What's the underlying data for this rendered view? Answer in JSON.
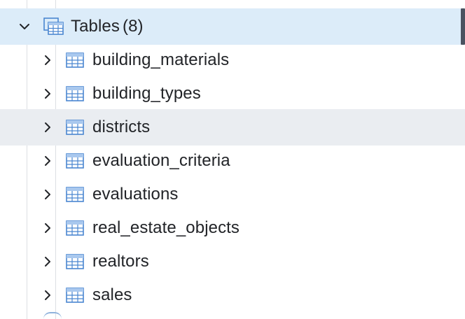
{
  "tree": {
    "parent": {
      "label": "Tables",
      "count": "(8)",
      "expanded": true,
      "icon": "tables-group-icon",
      "accent": "#dcecf9"
    },
    "children": [
      {
        "label": "building_materials",
        "icon": "table-icon"
      },
      {
        "label": "building_types",
        "icon": "table-icon"
      },
      {
        "label": "districts",
        "icon": "table-icon",
        "hovered": true
      },
      {
        "label": "evaluation_criteria",
        "icon": "table-icon"
      },
      {
        "label": "evaluations",
        "icon": "table-icon"
      },
      {
        "label": "real_estate_objects",
        "icon": "table-icon"
      },
      {
        "label": "realtors",
        "icon": "table-icon"
      },
      {
        "label": "sales",
        "icon": "table-icon"
      }
    ]
  },
  "colors": {
    "selected_row": "#dcecf9",
    "hover_row": "#eaedf1",
    "icon_blue": "#4a86d0",
    "text": "#222428"
  }
}
